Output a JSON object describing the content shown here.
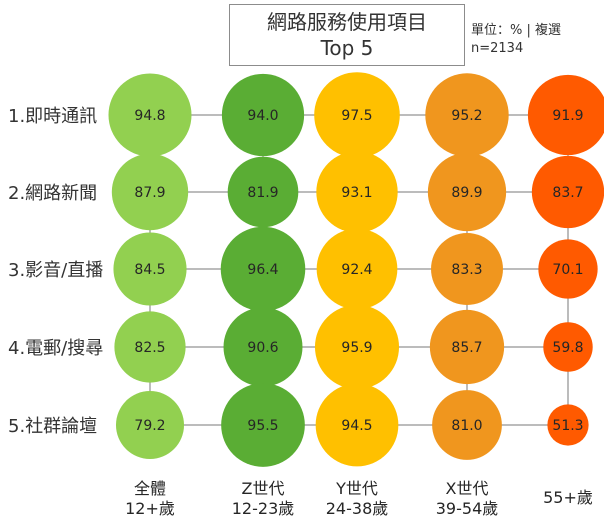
{
  "chart_data": {
    "type": "bubble-matrix",
    "title_line1": "網路服務使用項目",
    "title_line2": "Top 5",
    "unit_note": "單位：% | 複選",
    "sample_note": "n=2134",
    "rows": [
      "1.即時通訊",
      "2.網路新聞",
      "3.影音/直播",
      "4.電郵/搜尋",
      "5.社群論壇"
    ],
    "columns": [
      {
        "line1": "全體",
        "line2": "12+歲",
        "color": "#92d050"
      },
      {
        "line1": "Z世代",
        "line2": "12-23歲",
        "color": "#5aad34"
      },
      {
        "line1": "Y世代",
        "line2": "24-38歲",
        "color": "#ffc000"
      },
      {
        "line1": "X世代",
        "line2": "39-54歲",
        "color": "#f0961e"
      },
      {
        "line1": "55+歲",
        "line2": "",
        "color": "#ff5a00"
      }
    ],
    "values": [
      [
        94.8,
        94.0,
        97.5,
        95.2,
        91.9
      ],
      [
        87.9,
        81.9,
        93.1,
        89.9,
        83.7
      ],
      [
        84.5,
        96.4,
        92.4,
        83.3,
        70.1
      ],
      [
        82.5,
        90.6,
        95.9,
        85.7,
        59.8
      ],
      [
        79.2,
        95.5,
        94.5,
        81.0,
        51.3
      ]
    ]
  }
}
